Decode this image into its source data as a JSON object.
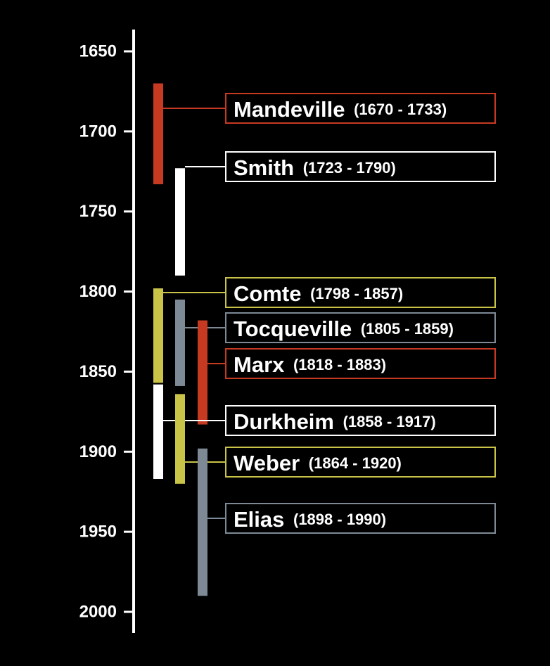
{
  "chart_data": {
    "type": "timeline",
    "title": "",
    "xlabel": "",
    "ylabel": "",
    "ylim": [
      1637,
      2012
    ],
    "ticks": [
      1650,
      1700,
      1750,
      1800,
      1850,
      1900,
      1950,
      2000
    ],
    "tick_labels": [
      "1650",
      "1700",
      "1750",
      "1800",
      "1850",
      "1900",
      "1950",
      "2000"
    ],
    "grid": false,
    "colors": {
      "red": "#c73a22",
      "white": "#ffffff",
      "yellow": "#c9c347",
      "gray": "#7d8a95",
      "axis": "#ffffff",
      "connector": "#bbbbbb",
      "background": "#000000"
    },
    "series": [
      {
        "name": "Mandeville",
        "years": "(1670 - 1733)",
        "start": 1670,
        "end": 1733,
        "color": "red"
      },
      {
        "name": "Smith",
        "years": "(1723 - 1790)",
        "start": 1723,
        "end": 1790,
        "color": "white"
      },
      {
        "name": "Comte",
        "years": "(1798 - 1857)",
        "start": 1798,
        "end": 1857,
        "color": "yellow"
      },
      {
        "name": "Tocqueville",
        "years": "(1805 - 1859)",
        "start": 1805,
        "end": 1859,
        "color": "gray"
      },
      {
        "name": "Marx",
        "years": "(1818 - 1883)",
        "start": 1818,
        "end": 1883,
        "color": "red"
      },
      {
        "name": "Durkheim",
        "years": "(1858 - 1917)",
        "start": 1858,
        "end": 1917,
        "color": "white"
      },
      {
        "name": "Weber",
        "years": "(1864 - 1920)",
        "start": 1864,
        "end": 1920,
        "color": "yellow"
      },
      {
        "name": "Elias",
        "years": "(1898 - 1990)",
        "start": 1898,
        "end": 1990,
        "color": "gray"
      }
    ]
  }
}
